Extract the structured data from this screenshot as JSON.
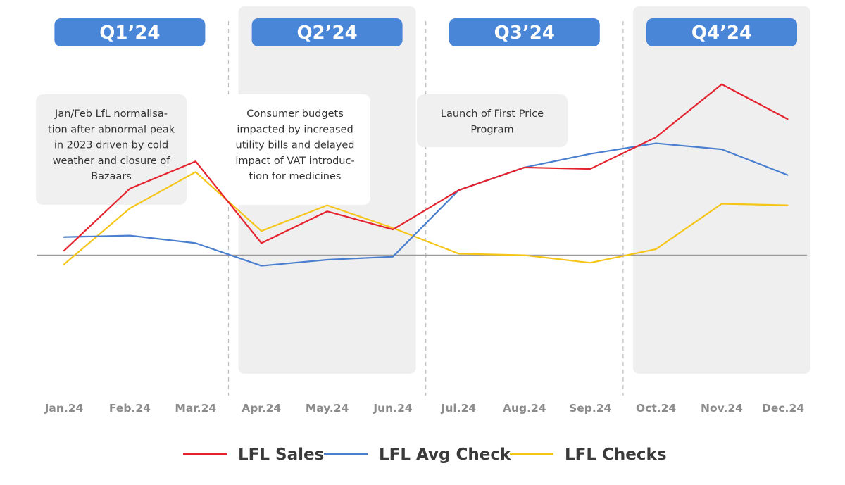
{
  "chart_data": {
    "type": "line",
    "title": "",
    "xlabel": "",
    "ylabel": "",
    "categories": [
      "Jan.24",
      "Feb.24",
      "Mar.24",
      "Apr.24",
      "May.24",
      "Jun.24",
      "Jul.24",
      "Aug.24",
      "Sep.24",
      "Oct.24",
      "Nov.24",
      "Dec.24"
    ],
    "ylim": [
      -7.7,
      16.5
    ],
    "grid": false,
    "legend_position": "bottom-center",
    "series": [
      {
        "name": "LFL Sales",
        "color": "#e4232f",
        "values": [
          0.3,
          4.4,
          6.2,
          0.8,
          2.9,
          1.7,
          4.3,
          5.8,
          5.7,
          7.8,
          11.3,
          9.0
        ]
      },
      {
        "name": "LFL Avg Check",
        "color": "#4a7fcf",
        "values": [
          1.2,
          1.3,
          0.8,
          -0.7,
          -0.3,
          -0.1,
          4.3,
          5.8,
          6.7,
          7.4,
          7.0,
          5.3
        ]
      },
      {
        "name": "LFL Checks",
        "color": "#f5c518",
        "values": [
          -0.6,
          3.1,
          5.5,
          1.6,
          3.3,
          1.8,
          0.1,
          0.0,
          -0.5,
          0.4,
          3.4,
          3.3
        ]
      }
    ],
    "quarters": [
      {
        "label": "Q1’24",
        "shaded": false,
        "note": [
          "Jan/Feb LfL normalisa-",
          "tion after abnormal peak",
          "in 2023 driven by cold",
          "weather and closure of",
          "Bazaars"
        ]
      },
      {
        "label": "Q2’24",
        "shaded": true,
        "note": [
          "Consumer budgets",
          "impacted by increased",
          "utility bills and delayed",
          "impact of VAT introduc-",
          "tion for medicines"
        ]
      },
      {
        "label": "Q3’24",
        "shaded": false,
        "note": [
          "Launch of First Price",
          "Program"
        ]
      },
      {
        "label": "Q4’24",
        "shaded": true,
        "note": []
      }
    ]
  }
}
